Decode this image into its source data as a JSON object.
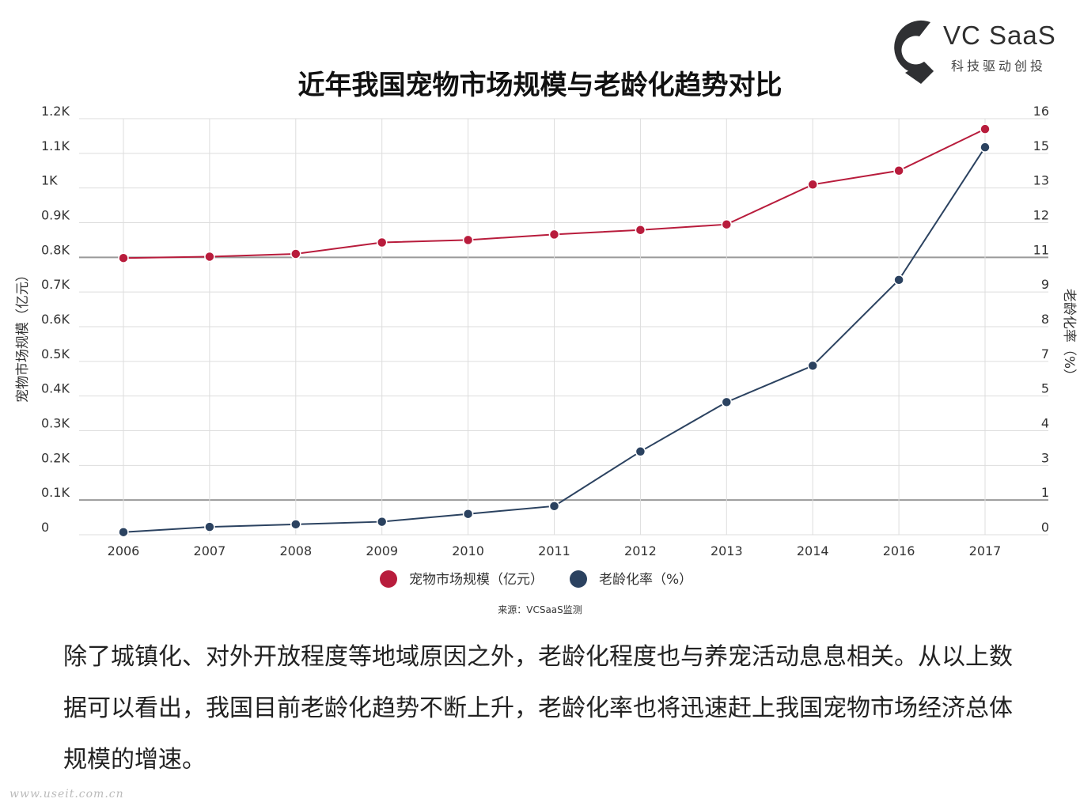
{
  "logo": {
    "name": "VC SaaS",
    "tagline": "科技驱动创投",
    "color": "#2f3033"
  },
  "source": "来源：VCSaaS监测",
  "paragraph": "除了城镇化、对外开放程度等地域原因之外，老龄化程度也与养宠活动息息相关。从以上数据可以看出，我国目前老龄化趋势不断上升，老龄化率也将迅速赶上我国宠物市场经济总体规模的增速。",
  "watermark": "www.useit.com.cn",
  "chart_data": {
    "type": "line",
    "title": "近年我国宠物市场规模与老龄化趋势对比",
    "x": [
      "2006",
      "2007",
      "2008",
      "2009",
      "2010",
      "2011",
      "2012",
      "2013",
      "2014",
      "2016",
      "2017"
    ],
    "y_left": {
      "label": "宠物市场规模（亿元）",
      "ticks": [
        "0",
        "0.1K",
        "0.2K",
        "0.3K",
        "0.4K",
        "0.5K",
        "0.6K",
        "0.7K",
        "0.8K",
        "0.9K",
        "1K",
        "1.1K",
        "1.2K"
      ],
      "ylim": [
        0,
        1200
      ]
    },
    "y_right": {
      "label": "老龄化率（%）",
      "ticks": [
        "0",
        "1",
        "3",
        "4",
        "5",
        "7",
        "8",
        "9",
        "11",
        "12",
        "13",
        "15",
        "16"
      ],
      "ylim": [
        0,
        16
      ]
    },
    "series": [
      {
        "name": "宠物市场规模（亿元）",
        "axis": "left",
        "color": "#b81c3c",
        "values": [
          798,
          802,
          810,
          843,
          850,
          866,
          879,
          895,
          1010,
          1050,
          1170
        ]
      },
      {
        "name": "老龄化率（%）",
        "axis": "right",
        "color": "#2b4260",
        "values": [
          0.1,
          0.3,
          0.4,
          0.5,
          0.8,
          1.1,
          3.2,
          5.1,
          6.5,
          9.8,
          14.9
        ]
      }
    ],
    "grid": true,
    "legend": "bottom-center"
  }
}
